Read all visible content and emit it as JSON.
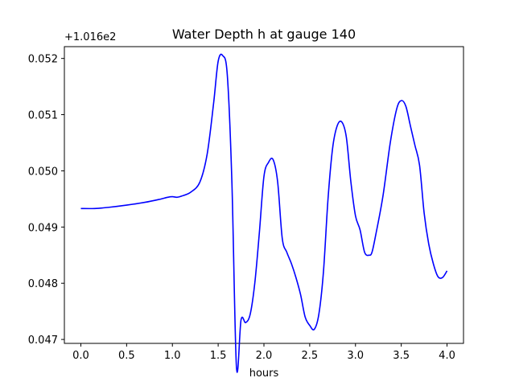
{
  "chart_data": {
    "type": "line",
    "title": "Water Depth h at gauge 140",
    "xlabel": "hours",
    "ylabel": "",
    "y_offset_text": "+1.016e2",
    "xlim": [
      -0.18,
      4.18
    ],
    "ylim": [
      0.04693,
      0.05221
    ],
    "x_ticks": [
      0.0,
      0.5,
      1.0,
      1.5,
      2.0,
      2.5,
      3.0,
      3.5,
      4.0
    ],
    "x_tick_labels": [
      "0.0",
      "0.5",
      "1.0",
      "1.5",
      "2.0",
      "2.5",
      "3.0",
      "3.5",
      "4.0"
    ],
    "y_ticks": [
      0.047,
      0.048,
      0.049,
      0.05,
      0.051,
      0.052
    ],
    "y_tick_labels": [
      "0.047",
      "0.048",
      "0.049",
      "0.050",
      "0.051",
      "0.052"
    ],
    "grid": false,
    "series": [
      {
        "color": "#0000ff",
        "x": [
          0.0,
          0.15,
          0.3,
          0.5,
          0.7,
          0.85,
          0.95,
          1.0,
          1.05,
          1.1,
          1.2,
          1.3,
          1.38,
          1.45,
          1.5,
          1.55,
          1.6,
          1.65,
          1.7,
          1.75,
          1.8,
          1.85,
          1.9,
          1.95,
          2.0,
          2.05,
          2.1,
          2.15,
          2.2,
          2.25,
          2.3,
          2.35,
          2.4,
          2.45,
          2.5,
          2.55,
          2.6,
          2.65,
          2.7,
          2.75,
          2.8,
          2.85,
          2.9,
          2.95,
          3.0,
          3.05,
          3.1,
          3.15,
          3.18,
          3.22,
          3.3,
          3.38,
          3.45,
          3.5,
          3.55,
          3.6,
          3.65,
          3.7,
          3.75,
          3.8,
          3.85,
          3.9,
          3.95,
          4.0
        ],
        "y": [
          0.04933,
          0.04933,
          0.04935,
          0.04939,
          0.04944,
          0.04949,
          0.04953,
          0.04954,
          0.04953,
          0.04955,
          0.04962,
          0.0498,
          0.0503,
          0.0512,
          0.05195,
          0.05205,
          0.0517,
          0.0498,
          0.0465,
          0.04735,
          0.0473,
          0.04745,
          0.048,
          0.0489,
          0.0499,
          0.05015,
          0.0502,
          0.0498,
          0.0488,
          0.04855,
          0.04835,
          0.0481,
          0.0478,
          0.0474,
          0.04725,
          0.04718,
          0.04745,
          0.0482,
          0.0495,
          0.0504,
          0.0508,
          0.05087,
          0.0506,
          0.0498,
          0.0492,
          0.04895,
          0.04855,
          0.0485,
          0.04855,
          0.04885,
          0.04955,
          0.0505,
          0.0511,
          0.05125,
          0.05115,
          0.0508,
          0.05045,
          0.0501,
          0.04925,
          0.0487,
          0.04835,
          0.04812,
          0.0481,
          0.04822
        ]
      }
    ]
  }
}
